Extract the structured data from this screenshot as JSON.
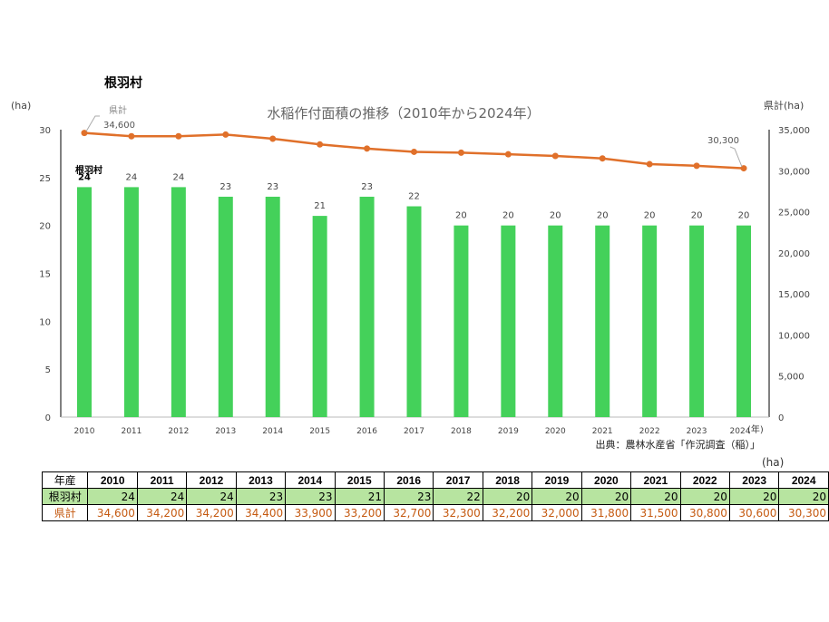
{
  "title": "根羽村",
  "chart_data": {
    "type": "bar+line",
    "title": "水稲作付面積の推移（2010年から2024年）",
    "categories": [
      "2010",
      "2011",
      "2012",
      "2013",
      "2014",
      "2015",
      "2016",
      "2017",
      "2018",
      "2019",
      "2020",
      "2021",
      "2022",
      "2023",
      "2024"
    ],
    "xlabel": "(年)",
    "ylabel_left": "(ha)",
    "ylabel_right": "県計(ha)",
    "ylim_left": [
      0,
      30
    ],
    "yticks_left": [
      "0",
      "5",
      "10",
      "15",
      "20",
      "25",
      "30"
    ],
    "ylim_right": [
      0,
      35000
    ],
    "yticks_right": [
      "0",
      "5,000",
      "10,000",
      "15,000",
      "20,000",
      "25,000",
      "30,000",
      "35,000"
    ],
    "grid": false,
    "series": [
      {
        "name": "根羽村",
        "type": "bar",
        "axis": "left",
        "color": "#44d15a",
        "values": [
          24,
          24,
          24,
          23,
          23,
          21,
          23,
          22,
          20,
          20,
          20,
          20,
          20,
          20,
          20
        ]
      },
      {
        "name": "県計",
        "type": "line",
        "axis": "right",
        "color": "#e0702a",
        "values": [
          34600,
          34200,
          34200,
          34400,
          33900,
          33200,
          32700,
          32300,
          32200,
          32000,
          31800,
          31500,
          30800,
          30600,
          30300
        ],
        "labels": [
          "34,600",
          "30,300"
        ]
      }
    ],
    "source": "出典：農林水産省「作況調査（稲）」"
  },
  "table": {
    "unit": "(ha)",
    "header_label": "年産",
    "rows": [
      {
        "label": "根羽村",
        "values": [
          "24",
          "24",
          "24",
          "23",
          "23",
          "21",
          "23",
          "22",
          "20",
          "20",
          "20",
          "20",
          "20",
          "20",
          "20"
        ]
      },
      {
        "label": "県計",
        "values": [
          "34,600",
          "34,200",
          "34,200",
          "34,400",
          "33,900",
          "33,200",
          "32,700",
          "32,300",
          "32,200",
          "32,000",
          "31,800",
          "31,500",
          "30,800",
          "30,600",
          "30,300"
        ]
      }
    ]
  }
}
